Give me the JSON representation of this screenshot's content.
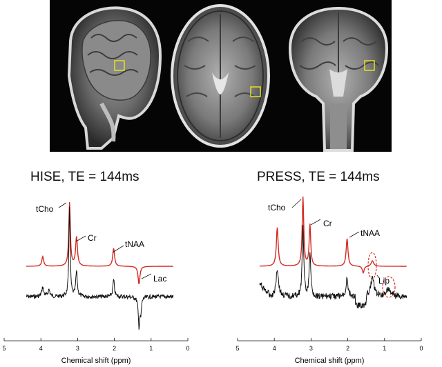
{
  "figure": {
    "left_panel": {
      "title": "HISE, TE = 144ms",
      "xlabel": "Chemical shift (ppm)",
      "ticks": [
        "5",
        "4",
        "3",
        "2",
        "1",
        "0"
      ],
      "peak_labels": [
        "tCho",
        "Cr",
        "tNAA",
        "Lac"
      ]
    },
    "right_panel": {
      "title": "PRESS, TE = 144ms",
      "xlabel": "Chemical shift (ppm)",
      "ticks": [
        "5",
        "4",
        "3",
        "2",
        "1",
        "0"
      ],
      "peak_labels": [
        "tCho",
        "Cr",
        "tNAA",
        "Lip"
      ]
    },
    "colors": {
      "fit": "#d42a20",
      "measured": "#111111",
      "voxel": "#e8e020",
      "lipid_marker": "#d42a20"
    }
  }
}
